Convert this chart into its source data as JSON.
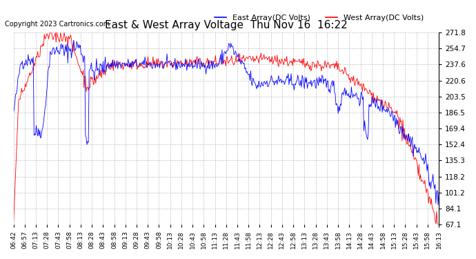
{
  "title": "East & West Array Voltage  Thu Nov 16  16:22",
  "copyright": "Copyright 2023 Cartronics.com",
  "legend_east": "East Array(DC Volts)",
  "legend_west": "West Array(DC Volts)",
  "east_color": "#0000ff",
  "west_color": "#ff0000",
  "bg_color": "#ffffff",
  "grid_color": "#c0c0c0",
  "yticks": [
    67.1,
    84.1,
    101.2,
    118.2,
    135.3,
    152.4,
    169.4,
    186.5,
    203.5,
    220.6,
    237.6,
    254.7,
    271.8
  ],
  "ymin": 67.1,
  "ymax": 271.8,
  "xtick_labels": [
    "06:42",
    "06:57",
    "07:13",
    "07:28",
    "07:43",
    "07:58",
    "08:13",
    "08:28",
    "08:43",
    "08:58",
    "09:13",
    "09:28",
    "09:43",
    "09:58",
    "10:13",
    "10:28",
    "10:43",
    "10:58",
    "11:13",
    "11:28",
    "11:43",
    "11:58",
    "12:13",
    "12:28",
    "12:43",
    "12:58",
    "13:13",
    "13:28",
    "13:43",
    "13:58",
    "14:13",
    "14:28",
    "14:43",
    "14:58",
    "15:13",
    "15:28",
    "15:43",
    "15:58",
    "16:13"
  ]
}
